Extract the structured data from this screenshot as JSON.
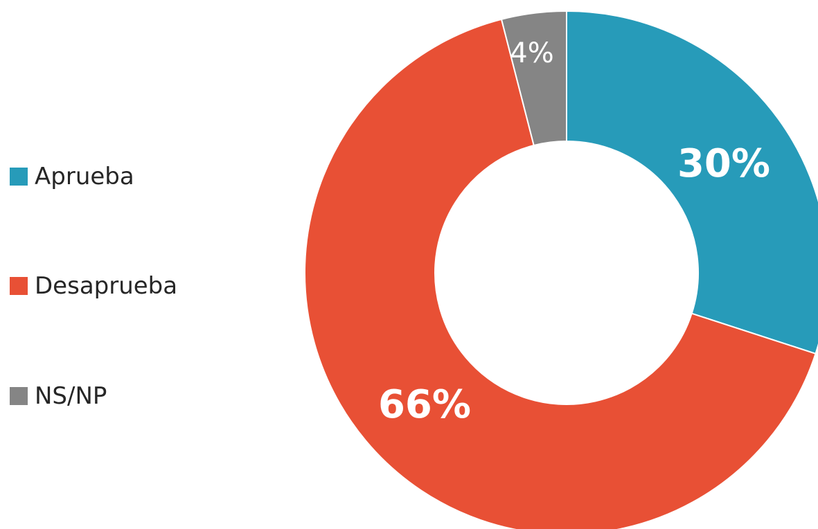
{
  "chart_data": {
    "type": "pie",
    "variant": "donut",
    "title": "",
    "categories": [
      "Aprueba",
      "Desaprueba",
      "NS/NP"
    ],
    "values": [
      30,
      66,
      4
    ],
    "data_labels": [
      "30%",
      "66%",
      "4%"
    ],
    "colors": [
      "#279bb9",
      "#e85035",
      "#858585"
    ],
    "legend_position": "left",
    "start": "top",
    "direction": "clockwise"
  }
}
